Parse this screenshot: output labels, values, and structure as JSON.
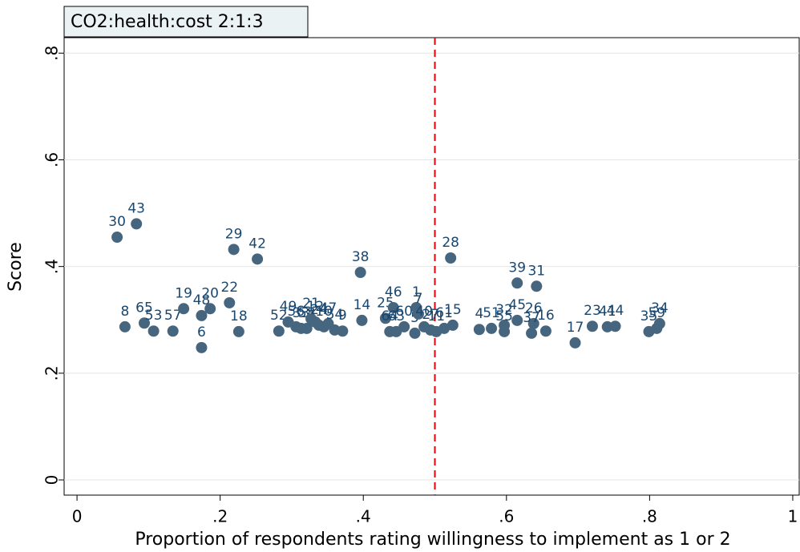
{
  "chart_data": {
    "type": "scatter",
    "title": "CO2:health:cost 2:1:3",
    "x_label": "Proportion of respondents rating willingness to implement as 1 or 2",
    "y_label": "Score",
    "xlim": [
      -0.018,
      1.009
    ],
    "ylim": [
      -0.0285,
      0.829
    ],
    "xticks": [
      0,
      {
        "value": 0.2,
        "label": ".2"
      },
      {
        "value": 0.4,
        "label": ".4"
      },
      {
        "value": 0.6,
        "label": ".6"
      },
      {
        "value": 0.8,
        "label": ".8"
      },
      1
    ],
    "yticks": [
      0,
      {
        "value": 0.2,
        "label": ".2"
      },
      {
        "value": 0.4,
        "label": ".4"
      },
      {
        "value": 0.6,
        "label": ".6"
      },
      {
        "value": 0.8,
        "label": ".8"
      }
    ],
    "grid": true,
    "xline": 0.5,
    "xline_color": "#e8000b",
    "marker_color": "#46657f",
    "label_color": "#1a476f",
    "series": [
      {
        "name": "Score",
        "point_labels": [
          "8",
          "30",
          "43",
          "65",
          "53",
          "57",
          "19",
          "48",
          "6",
          "20",
          "22",
          "29",
          "18",
          "42",
          "52",
          "49",
          "56",
          "33",
          "58",
          "21",
          "12",
          "24",
          "10",
          "47",
          "54",
          "9",
          "38",
          "14",
          "25",
          "46",
          "64",
          "63",
          "60",
          "5",
          "1",
          "7",
          "40",
          "27",
          "11",
          "28",
          "61",
          "15",
          "4",
          "51",
          "32",
          "55",
          "45",
          "39",
          "26",
          "37",
          "31",
          "16",
          "17",
          "23",
          "41",
          "44",
          "35",
          "59",
          "34"
        ],
        "x": [
          0.067,
          0.056,
          0.083,
          0.094,
          0.107,
          0.134,
          0.149,
          0.174,
          0.174,
          0.186,
          0.213,
          0.219,
          0.226,
          0.252,
          0.282,
          0.295,
          0.306,
          0.313,
          0.321,
          0.327,
          0.333,
          0.338,
          0.345,
          0.351,
          0.36,
          0.371,
          0.396,
          0.398,
          0.431,
          0.442,
          0.437,
          0.446,
          0.457,
          0.472,
          0.474,
          0.477,
          0.485,
          0.494,
          0.502,
          0.522,
          0.513,
          0.525,
          0.562,
          0.579,
          0.597,
          0.597,
          0.615,
          0.615,
          0.638,
          0.635,
          0.642,
          0.655,
          0.696,
          0.72,
          0.741,
          0.752,
          0.799,
          0.81,
          0.814
        ],
        "values": [
          0.287,
          0.455,
          0.48,
          0.294,
          0.279,
          0.279,
          0.321,
          0.308,
          0.248,
          0.321,
          0.332,
          0.432,
          0.278,
          0.414,
          0.279,
          0.296,
          0.287,
          0.284,
          0.284,
          0.302,
          0.296,
          0.29,
          0.287,
          0.293,
          0.281,
          0.279,
          0.389,
          0.299,
          0.303,
          0.323,
          0.278,
          0.278,
          0.287,
          0.275,
          0.323,
          0.311,
          0.287,
          0.281,
          0.278,
          0.416,
          0.284,
          0.29,
          0.282,
          0.284,
          0.29,
          0.278,
          0.299,
          0.369,
          0.293,
          0.275,
          0.363,
          0.279,
          0.257,
          0.288,
          0.287,
          0.288,
          0.278,
          0.284,
          0.293
        ]
      }
    ]
  }
}
